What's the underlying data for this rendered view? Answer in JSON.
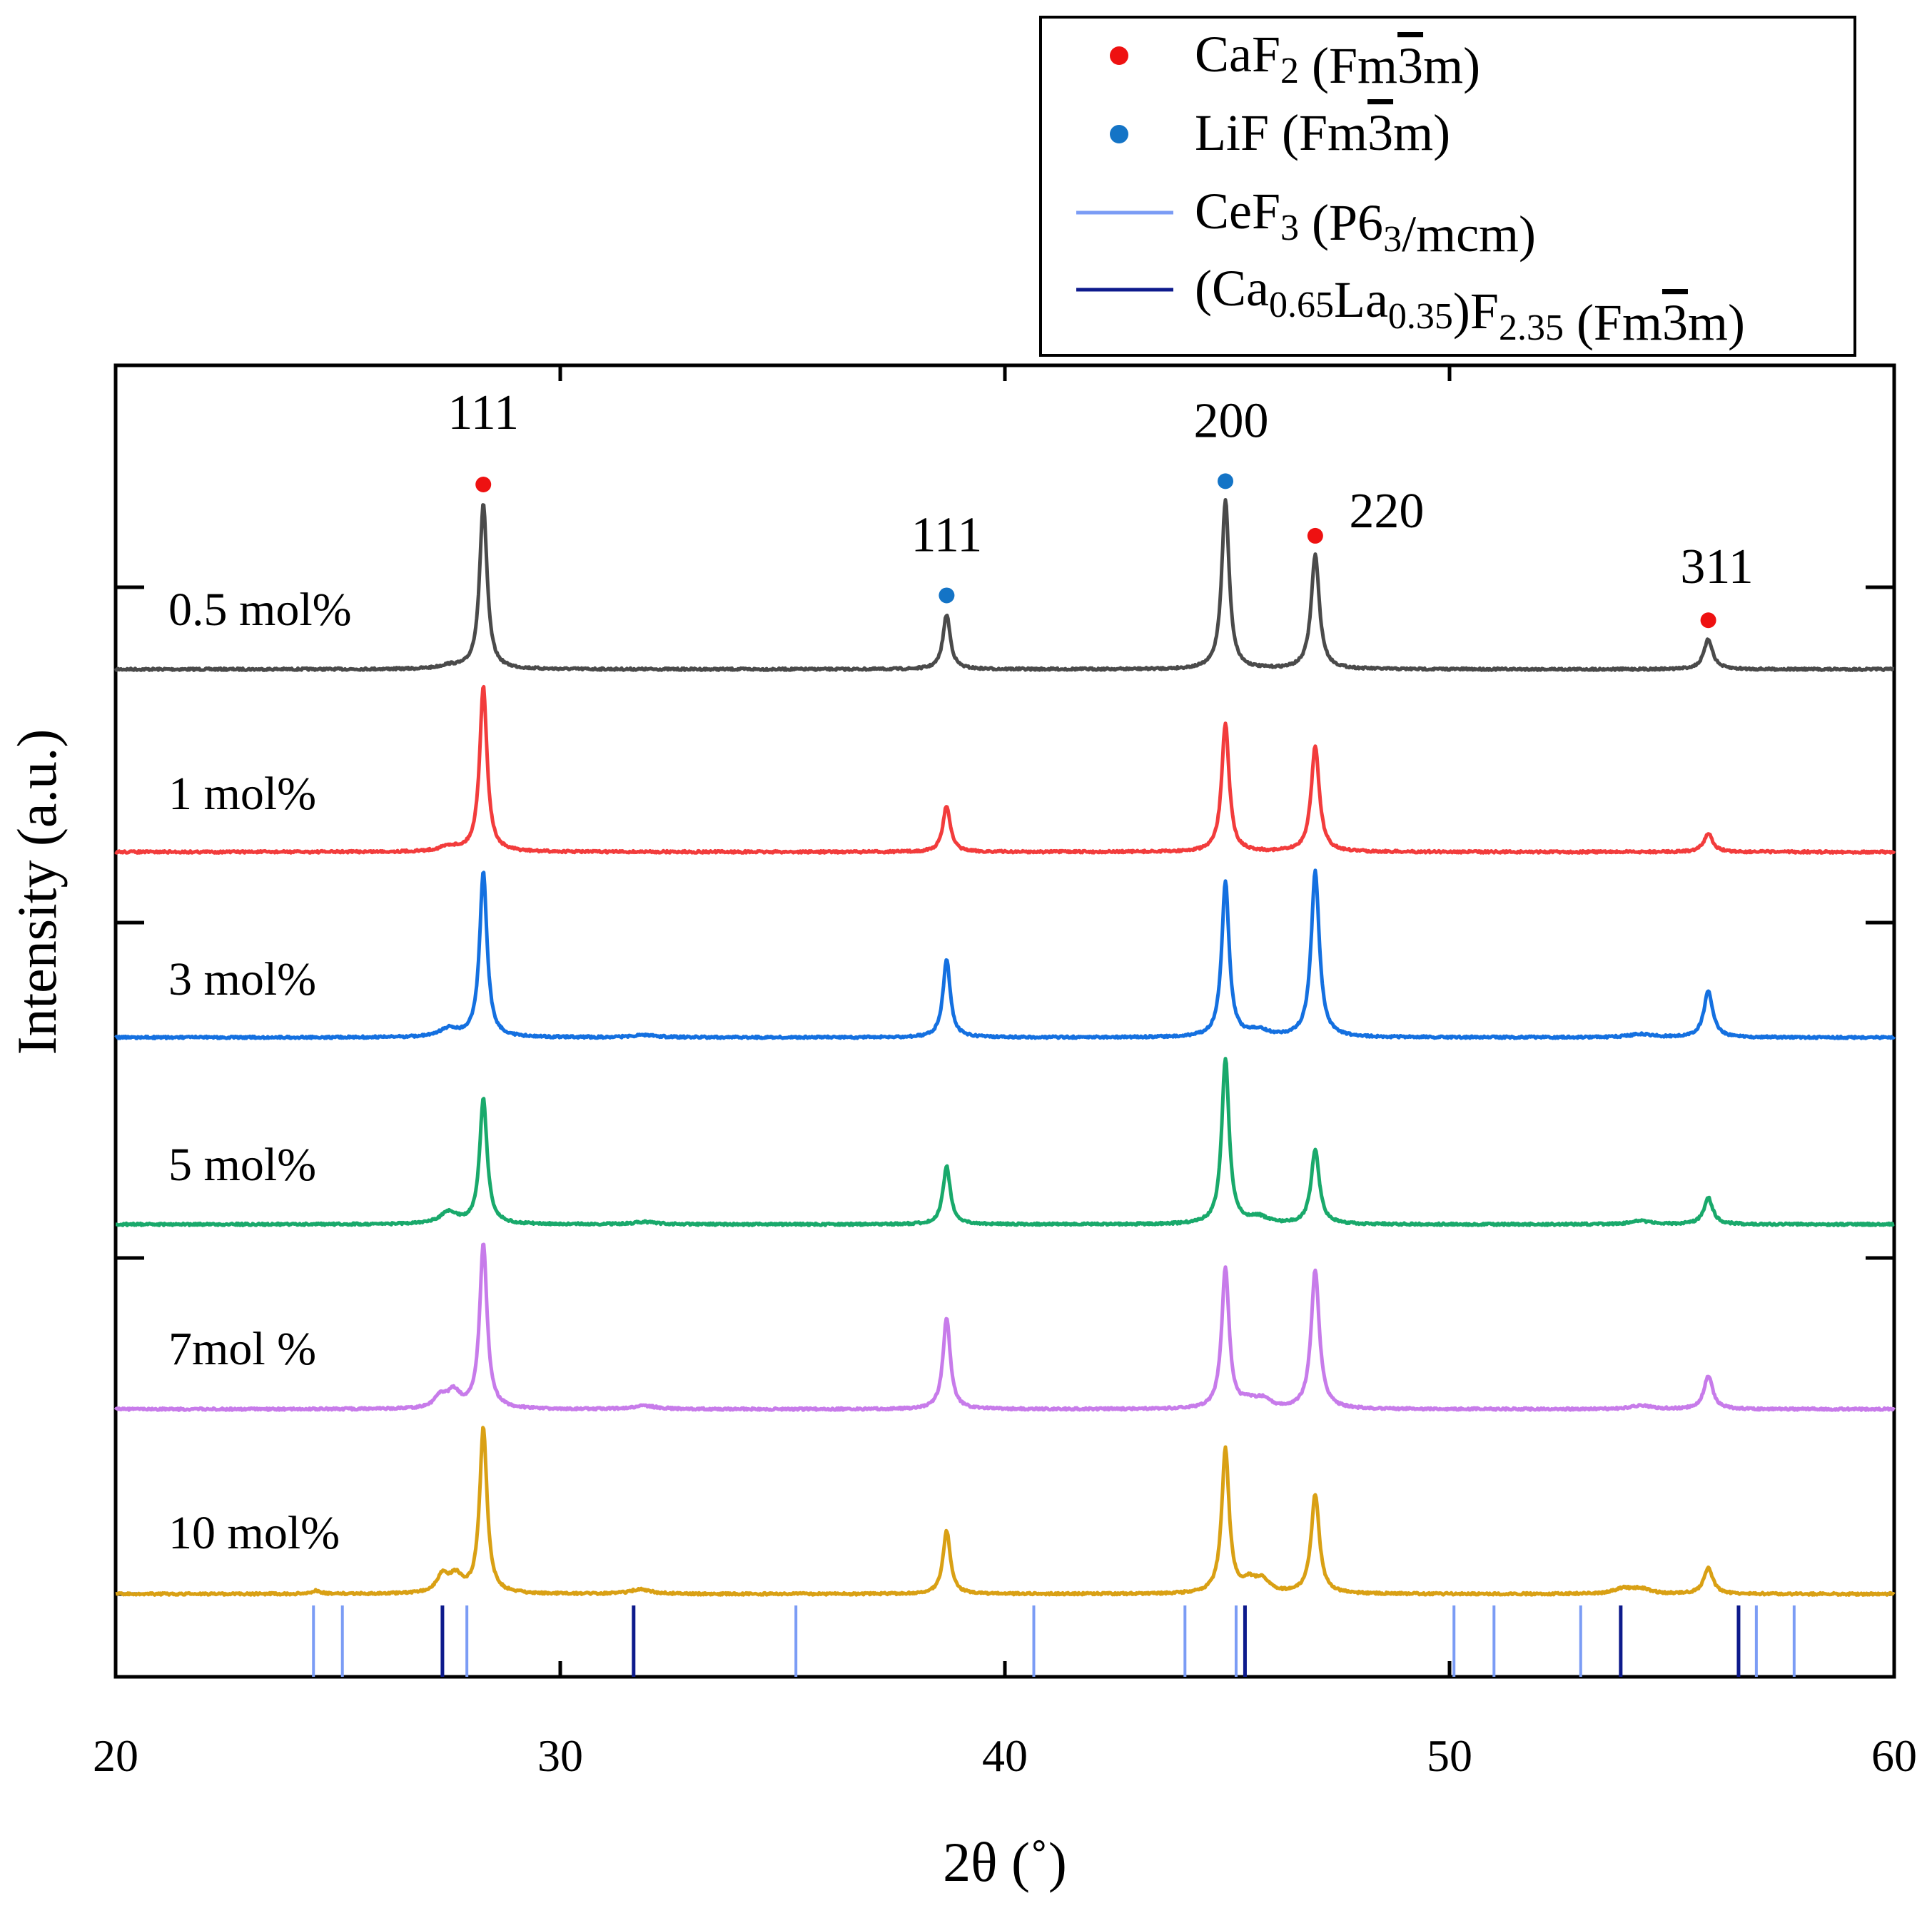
{
  "chart_data": {
    "type": "line",
    "title": "",
    "xlabel": "2θ (˚)",
    "ylabel": "Intensity (a.u.)",
    "xlim": [
      20,
      60
    ],
    "xticks": [
      20,
      30,
      40,
      50,
      60
    ],
    "xtick_labels": [
      "20",
      "30",
      "40",
      "50",
      "60"
    ],
    "grid": false,
    "legend_position": "top-right",
    "series": [
      {
        "name": "0.5 mol%",
        "color": "#4a4a4a",
        "peaks": [
          {
            "x": 27.5,
            "h": 0.02,
            "w": 0.25
          },
          {
            "x": 28.27,
            "h": 1.0,
            "w": 0.1
          },
          {
            "x": 38.69,
            "h": 0.33,
            "w": 0.1
          },
          {
            "x": 44.96,
            "h": 1.02,
            "w": 0.1
          },
          {
            "x": 46.98,
            "h": 0.69,
            "w": 0.11
          },
          {
            "x": 55.82,
            "h": 0.18,
            "w": 0.12
          }
        ]
      },
      {
        "name": "1 mol%",
        "color": "#f23c3c",
        "peaks": [
          {
            "x": 27.5,
            "h": 0.03,
            "w": 0.25
          },
          {
            "x": 28.27,
            "h": 1.0,
            "w": 0.1
          },
          {
            "x": 38.69,
            "h": 0.28,
            "w": 0.1
          },
          {
            "x": 44.96,
            "h": 0.78,
            "w": 0.1
          },
          {
            "x": 46.98,
            "h": 0.64,
            "w": 0.11
          },
          {
            "x": 55.82,
            "h": 0.11,
            "w": 0.12
          }
        ]
      },
      {
        "name": "3 mol%",
        "color": "#1470e0",
        "peaks": [
          {
            "x": 27.5,
            "h": 0.05,
            "w": 0.25
          },
          {
            "x": 28.27,
            "h": 1.0,
            "w": 0.1
          },
          {
            "x": 31.9,
            "h": 0.015,
            "w": 0.3
          },
          {
            "x": 38.69,
            "h": 0.47,
            "w": 0.1
          },
          {
            "x": 44.96,
            "h": 0.94,
            "w": 0.1
          },
          {
            "x": 45.7,
            "h": 0.04,
            "w": 0.25
          },
          {
            "x": 46.98,
            "h": 1.0,
            "w": 0.11
          },
          {
            "x": 54.3,
            "h": 0.02,
            "w": 0.3
          },
          {
            "x": 55.82,
            "h": 0.28,
            "w": 0.12
          }
        ]
      },
      {
        "name": "5 mol%",
        "color": "#19a96b",
        "peaks": [
          {
            "x": 27.5,
            "h": 0.07,
            "w": 0.25
          },
          {
            "x": 28.27,
            "h": 0.76,
            "w": 0.1
          },
          {
            "x": 31.9,
            "h": 0.015,
            "w": 0.3
          },
          {
            "x": 38.69,
            "h": 0.35,
            "w": 0.1
          },
          {
            "x": 44.96,
            "h": 1.0,
            "w": 0.1
          },
          {
            "x": 45.7,
            "h": 0.04,
            "w": 0.25
          },
          {
            "x": 46.98,
            "h": 0.45,
            "w": 0.11
          },
          {
            "x": 54.3,
            "h": 0.02,
            "w": 0.3
          },
          {
            "x": 55.82,
            "h": 0.16,
            "w": 0.12
          }
        ]
      },
      {
        "name": "7mol %",
        "color": "#c77bea",
        "peaks": [
          {
            "x": 27.3,
            "h": 0.07,
            "w": 0.15
          },
          {
            "x": 27.6,
            "h": 0.1,
            "w": 0.18
          },
          {
            "x": 28.27,
            "h": 1.0,
            "w": 0.1
          },
          {
            "x": 31.9,
            "h": 0.02,
            "w": 0.3
          },
          {
            "x": 38.69,
            "h": 0.55,
            "w": 0.1
          },
          {
            "x": 44.96,
            "h": 0.85,
            "w": 0.1
          },
          {
            "x": 45.5,
            "h": 0.04,
            "w": 0.2
          },
          {
            "x": 45.8,
            "h": 0.05,
            "w": 0.2
          },
          {
            "x": 46.98,
            "h": 0.84,
            "w": 0.11
          },
          {
            "x": 54.3,
            "h": 0.02,
            "w": 0.3
          },
          {
            "x": 55.82,
            "h": 0.2,
            "w": 0.12
          }
        ]
      },
      {
        "name": "10 mol%",
        "color": "#d9a014",
        "peaks": [
          {
            "x": 24.5,
            "h": 0.02,
            "w": 0.12
          },
          {
            "x": 27.35,
            "h": 0.1,
            "w": 0.15
          },
          {
            "x": 27.65,
            "h": 0.1,
            "w": 0.18
          },
          {
            "x": 28.27,
            "h": 1.0,
            "w": 0.1
          },
          {
            "x": 31.8,
            "h": 0.03,
            "w": 0.25
          },
          {
            "x": 38.69,
            "h": 0.38,
            "w": 0.1
          },
          {
            "x": 44.96,
            "h": 0.87,
            "w": 0.1
          },
          {
            "x": 45.5,
            "h": 0.07,
            "w": 0.2
          },
          {
            "x": 45.8,
            "h": 0.07,
            "w": 0.18
          },
          {
            "x": 46.98,
            "h": 0.6,
            "w": 0.11
          },
          {
            "x": 53.9,
            "h": 0.03,
            "w": 0.25
          },
          {
            "x": 54.3,
            "h": 0.03,
            "w": 0.25
          },
          {
            "x": 55.82,
            "h": 0.16,
            "w": 0.12
          }
        ]
      }
    ],
    "peak_labels": [
      {
        "text": "111",
        "x": 28.27,
        "phase": "CaF2"
      },
      {
        "text": "111",
        "x": 38.69,
        "phase": "LiF"
      },
      {
        "text": "200",
        "x": 44.96,
        "phase": "LiF"
      },
      {
        "text": "220",
        "x": 46.98,
        "phase": "CaF2"
      },
      {
        "text": "311",
        "x": 55.82,
        "phase": "CaF2"
      }
    ],
    "reference_patterns": [
      {
        "name": "CeF3",
        "color": "#7b9cf5",
        "positions": [
          24.45,
          25.1,
          27.9,
          35.3,
          40.65,
          44.05,
          45.2,
          50.1,
          51.0,
          52.95,
          56.9,
          57.75
        ]
      },
      {
        "name": "(Ca0.65La0.35)F2.35",
        "color": "#0d1a8c",
        "positions": [
          27.35,
          31.65,
          45.4,
          53.85,
          56.5
        ]
      }
    ],
    "legend": [
      {
        "kind": "dot",
        "color": "#ee1111",
        "parts": [
          {
            "t": "CaF"
          },
          {
            "t": "2",
            "sub": true
          },
          {
            "t": " (Fm"
          },
          {
            "t": "3",
            "bar": true
          },
          {
            "t": "m)"
          }
        ]
      },
      {
        "kind": "dot",
        "color": "#1474c6",
        "parts": [
          {
            "t": "LiF  (Fm"
          },
          {
            "t": "3",
            "bar": true
          },
          {
            "t": "m)"
          }
        ]
      },
      {
        "kind": "line",
        "color": "#7b9cf5",
        "parts": [
          {
            "t": "CeF"
          },
          {
            "t": "3",
            "sub": true
          },
          {
            "t": " (P6"
          },
          {
            "t": "3",
            "sub": true
          },
          {
            "t": "/mcm)"
          }
        ]
      },
      {
        "kind": "line",
        "color": "#0d1a8c",
        "parts": [
          {
            "t": "(Ca"
          },
          {
            "t": "0.65",
            "sub": true
          },
          {
            "t": "La"
          },
          {
            "t": "0.35",
            "sub": true
          },
          {
            "t": ")F"
          },
          {
            "t": "2.35",
            "sub": true
          },
          {
            "t": " (Fm"
          },
          {
            "t": "3",
            "bar": true
          },
          {
            "t": "m)"
          }
        ]
      }
    ]
  }
}
